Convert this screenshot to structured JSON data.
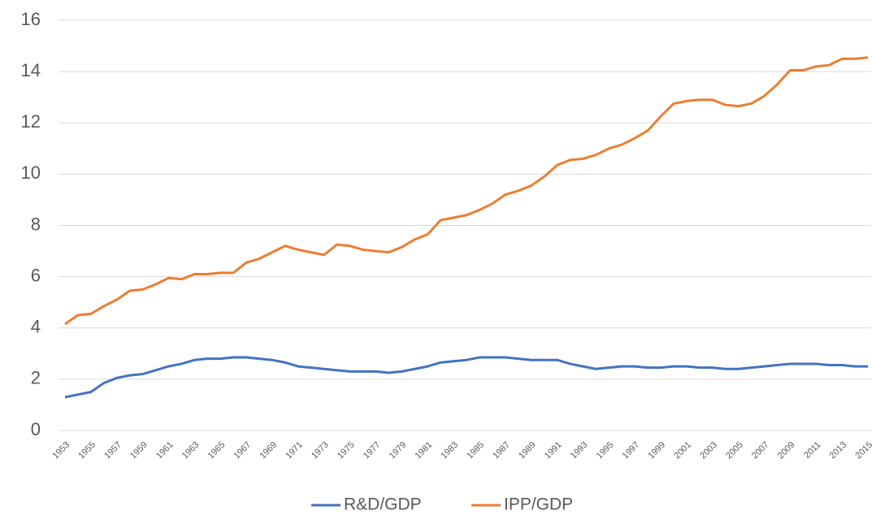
{
  "chart_data": {
    "type": "line",
    "x": [
      1953,
      1954,
      1955,
      1956,
      1957,
      1958,
      1959,
      1960,
      1961,
      1962,
      1963,
      1964,
      1965,
      1966,
      1967,
      1968,
      1969,
      1970,
      1971,
      1972,
      1973,
      1974,
      1975,
      1976,
      1977,
      1978,
      1979,
      1980,
      1981,
      1982,
      1983,
      1984,
      1985,
      1986,
      1987,
      1988,
      1989,
      1990,
      1991,
      1992,
      1993,
      1994,
      1995,
      1996,
      1997,
      1998,
      1999,
      2000,
      2001,
      2002,
      2003,
      2004,
      2005,
      2006,
      2007,
      2008,
      2009,
      2010,
      2011,
      2012,
      2013,
      2014,
      2015
    ],
    "series": [
      {
        "name": "R&D/GDP",
        "color": "#4472c4",
        "values": [
          1.3,
          1.4,
          1.5,
          1.85,
          2.05,
          2.15,
          2.2,
          2.35,
          2.5,
          2.6,
          2.75,
          2.8,
          2.8,
          2.85,
          2.85,
          2.8,
          2.75,
          2.65,
          2.5,
          2.45,
          2.4,
          2.35,
          2.3,
          2.3,
          2.3,
          2.25,
          2.3,
          2.4,
          2.5,
          2.65,
          2.7,
          2.75,
          2.85,
          2.85,
          2.85,
          2.8,
          2.75,
          2.75,
          2.75,
          2.6,
          2.5,
          2.4,
          2.45,
          2.5,
          2.5,
          2.45,
          2.45,
          2.5,
          2.5,
          2.45,
          2.45,
          2.4,
          2.4,
          2.45,
          2.5,
          2.55,
          2.6,
          2.6,
          2.6,
          2.55,
          2.55,
          2.5,
          2.5
        ]
      },
      {
        "name": "IPP/GDP",
        "color": "#ed7d31",
        "values": [
          4.15,
          4.5,
          4.55,
          4.85,
          5.1,
          5.45,
          5.5,
          5.7,
          5.95,
          5.9,
          6.1,
          6.1,
          6.15,
          6.15,
          6.55,
          6.7,
          6.95,
          7.2,
          7.05,
          6.95,
          6.85,
          7.25,
          7.2,
          7.05,
          7.0,
          6.95,
          7.15,
          7.45,
          7.65,
          8.2,
          8.3,
          8.4,
          8.6,
          8.85,
          9.2,
          9.35,
          9.55,
          9.9,
          10.35,
          10.55,
          10.6,
          10.75,
          11.0,
          11.15,
          11.4,
          11.7,
          12.25,
          12.75,
          12.85,
          12.9,
          12.9,
          12.7,
          12.65,
          12.75,
          13.05,
          13.5,
          14.05,
          14.05,
          14.2,
          14.25,
          14.5,
          14.5,
          14.55
        ]
      }
    ],
    "xlim": [
      1953,
      2015
    ],
    "xticks": [
      1953,
      1955,
      1957,
      1959,
      1961,
      1963,
      1965,
      1967,
      1969,
      1971,
      1973,
      1975,
      1977,
      1979,
      1981,
      1983,
      1985,
      1987,
      1989,
      1991,
      1993,
      1995,
      1997,
      1999,
      2001,
      2003,
      2005,
      2007,
      2009,
      2011,
      2013,
      2015
    ],
    "ylim": [
      0,
      16
    ],
    "yticks": [
      0,
      2,
      4,
      6,
      8,
      10,
      12,
      14,
      16
    ],
    "grid": true
  }
}
